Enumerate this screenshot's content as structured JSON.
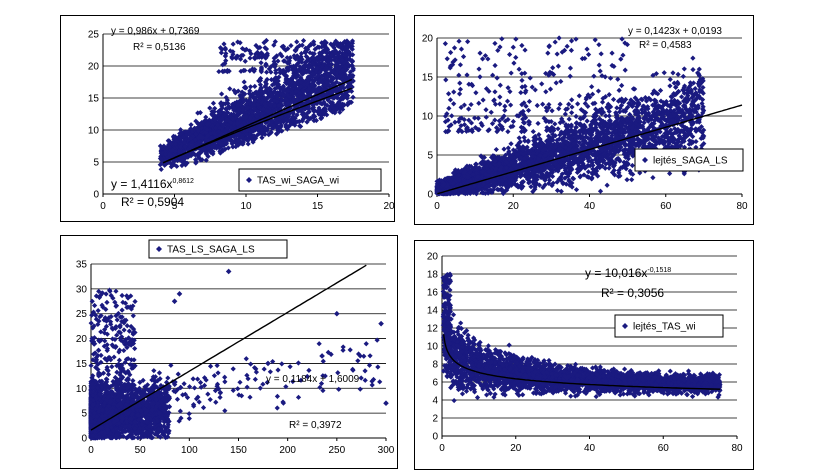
{
  "chart_data": [
    {
      "type": "scatter",
      "xlim": [
        0,
        20
      ],
      "ylim": [
        0,
        25
      ],
      "xticks": [
        "0",
        "5",
        "10",
        "15",
        "20"
      ],
      "yticks": [
        "0",
        "5",
        "10",
        "15",
        "20",
        "25"
      ],
      "grid": "horizontal",
      "legend": "bottom-right",
      "series": [
        {
          "name": "TAS_wi_SAGA_wi",
          "color": "#1a1a80"
        }
      ],
      "trendlines": [
        {
          "kind": "linear",
          "label": "y = 0,986x + 0,7369",
          "r2": "R² = 0,5136"
        },
        {
          "kind": "power",
          "label": "y = 1,4116x",
          "exponent": "0,8612",
          "r2": "R² = 0,5904"
        }
      ]
    },
    {
      "type": "scatter",
      "xlim": [
        0,
        80
      ],
      "ylim": [
        0,
        20
      ],
      "xticks": [
        "0",
        "20",
        "40",
        "60",
        "80"
      ],
      "yticks": [
        "0",
        "5",
        "10",
        "15",
        "20"
      ],
      "grid": "horizontal",
      "legend": "right",
      "series": [
        {
          "name": "lejtés_SAGA_LS",
          "color": "#1a1a80"
        }
      ],
      "trendlines": [
        {
          "kind": "linear",
          "label": "y = 0,1423x + 0,0193",
          "r2": "R² = 0,4583"
        }
      ]
    },
    {
      "type": "scatter",
      "xlim": [
        0,
        300
      ],
      "ylim": [
        0,
        35
      ],
      "xticks": [
        "0",
        "50",
        "100",
        "150",
        "200",
        "250",
        "300"
      ],
      "yticks": [
        "0",
        "5",
        "10",
        "15",
        "20",
        "25",
        "30",
        "35"
      ],
      "grid": "horizontal",
      "legend": "top",
      "series": [
        {
          "name": "TAS_LS_SAGA_LS",
          "color": "#1a1a80"
        }
      ],
      "trendlines": [
        {
          "kind": "linear",
          "label": "y = 0,1184x + 1,6009",
          "r2": "R² = 0,3972"
        }
      ]
    },
    {
      "type": "scatter",
      "xlim": [
        0,
        80
      ],
      "ylim": [
        0,
        20
      ],
      "xticks": [
        "0",
        "20",
        "40",
        "60",
        "80"
      ],
      "yticks": [
        "0",
        "2",
        "4",
        "6",
        "8",
        "10",
        "12",
        "14",
        "16",
        "18",
        "20"
      ],
      "grid": "horizontal",
      "legend": "right",
      "series": [
        {
          "name": "lejtés_TAS_wi",
          "color": "#1a1a80"
        }
      ],
      "trendlines": [
        {
          "kind": "power",
          "label": "y = 10,016x",
          "exponent": "-0,1518",
          "r2": "R² = 0,3056"
        }
      ]
    }
  ]
}
